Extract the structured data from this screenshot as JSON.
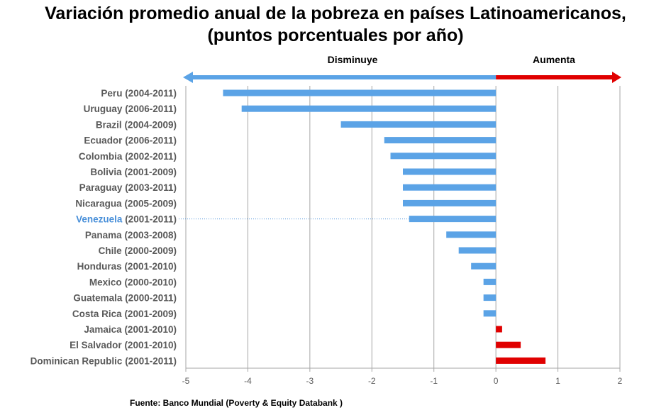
{
  "title_line1": "Variación promedio anual de la pobreza en países Latinoamericanos,",
  "title_line2": "(puntos porcentuales por año)",
  "source": "Fuente: Banco Mundial (Poverty & Equity Databank )",
  "direction_labels": {
    "decrease": "Disminuye",
    "increase": "Aumenta"
  },
  "colors": {
    "decrease": "#5ba3e6",
    "increase": "#e00000",
    "highlight": "#4a90d9",
    "grid": "#a6a6a6"
  },
  "chart_data": {
    "type": "bar",
    "orientation": "horizontal",
    "xlim": [
      -5,
      2
    ],
    "xticks": [
      -5,
      -4,
      -3,
      -2,
      -1,
      0,
      1,
      2
    ],
    "grid": true,
    "highlight_category": "Venezuela",
    "categories": [
      {
        "name": "Peru",
        "period": "(2004-2011)",
        "value": -4.4
      },
      {
        "name": "Uruguay",
        "period": "(2006-2011)",
        "value": -4.1
      },
      {
        "name": "Brazil",
        "period": "(2004-2009)",
        "value": -2.5
      },
      {
        "name": "Ecuador",
        "period": "(2006-2011)",
        "value": -1.8
      },
      {
        "name": "Colombia",
        "period": "(2002-2011)",
        "value": -1.7
      },
      {
        "name": "Bolivia",
        "period": "(2001-2009)",
        "value": -1.5
      },
      {
        "name": "Paraguay",
        "period": "(2003-2011)",
        "value": -1.5
      },
      {
        "name": "Nicaragua",
        "period": "(2005-2009)",
        "value": -1.5
      },
      {
        "name": "Venezuela",
        "period": "(2001-2011)",
        "value": -1.4
      },
      {
        "name": "Panama",
        "period": "(2003-2008)",
        "value": -0.8
      },
      {
        "name": "Chile",
        "period": "(2000-2009)",
        "value": -0.6
      },
      {
        "name": "Honduras",
        "period": "(2001-2010)",
        "value": -0.4
      },
      {
        "name": "Mexico",
        "period": "(2000-2010)",
        "value": -0.2
      },
      {
        "name": "Guatemala",
        "period": "(2000-2011)",
        "value": -0.2
      },
      {
        "name": "Costa Rica",
        "period": "(2001-2009)",
        "value": -0.2
      },
      {
        "name": "Jamaica",
        "period": "(2001-2010)",
        "value": 0.1
      },
      {
        "name": "El Salvador",
        "period": "(2001-2010)",
        "value": 0.4
      },
      {
        "name": "Dominican Republic",
        "period": "(2001-2011)",
        "value": 0.8
      }
    ]
  }
}
